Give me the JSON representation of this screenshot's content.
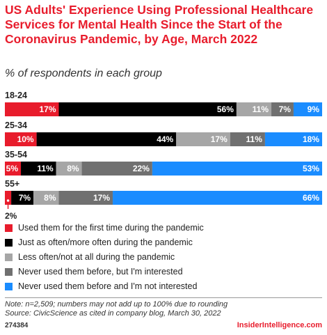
{
  "chart_data": {
    "type": "bar",
    "orientation": "horizontal",
    "stacked": true,
    "title": "US Adults' Experience Using Professional Healthcare Services for Mental Health Since the Start of the Coronavirus Pandemic, by Age, March 2022",
    "subtitle": "% of respondents in each group",
    "categories": [
      "18-24",
      "25-34",
      "35-54",
      "55+"
    ],
    "series": [
      {
        "name": "Used them for the first time during the pandemic",
        "values": [
          17,
          10,
          5,
          2
        ],
        "color": "#e81c2c",
        "label_color": "#ffffff"
      },
      {
        "name": "Just as often/more often during the pandemic",
        "values": [
          56,
          44,
          11,
          7
        ],
        "color": "#000000",
        "label_color": "#ffffff"
      },
      {
        "name": "Less often/not at all during the pandemic",
        "values": [
          11,
          17,
          8,
          8
        ],
        "color": "#a6a6a6",
        "label_color": "#ffffff"
      },
      {
        "name": "Never used them before, but I'm interested",
        "values": [
          7,
          11,
          22,
          17
        ],
        "color": "#707070",
        "label_color": "#ffffff"
      },
      {
        "name": "Never used them before and I'm not interested",
        "values": [
          9,
          18,
          53,
          66
        ],
        "color": "#1a8cff",
        "label_color": "#ffffff"
      }
    ],
    "value_suffix": "%",
    "legend_position": "bottom"
  },
  "footer": {
    "note": "Note: n=2,509; numbers may not add up to 100% due to rounding",
    "source": "Source: CivicScience as cited in company blog, March 30, 2022",
    "chart_id": "274384",
    "brand": "InsiderIntelligence.com"
  }
}
